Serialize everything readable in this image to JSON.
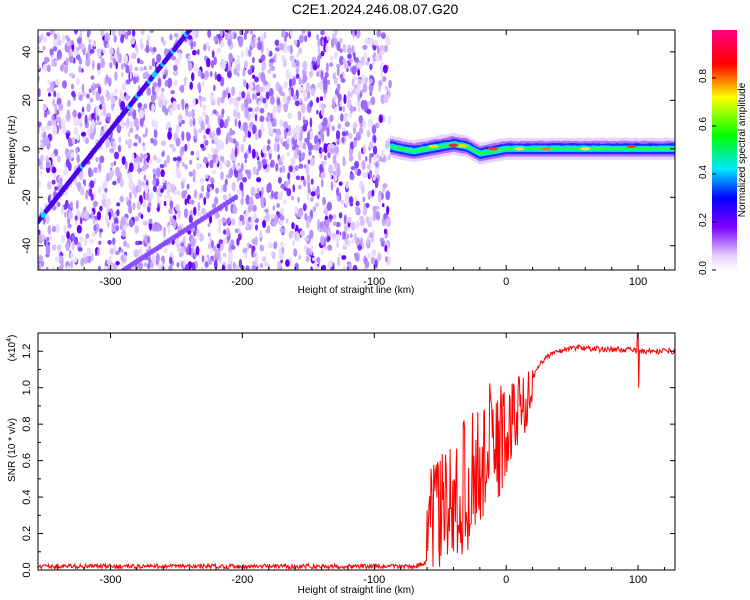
{
  "figure_title": "C2E1.2024.246.08.07.G20",
  "chart_data": [
    {
      "type": "heatmap",
      "title": "C2E1.2024.246.08.07.G20",
      "xlabel": "Height of straight line (km)",
      "ylabel": "Frequency (Hz)",
      "xlim": [
        -355,
        128
      ],
      "ylim": [
        -50,
        49
      ],
      "x_ticks": [
        -300,
        -200,
        -100,
        0,
        100
      ],
      "x_tick_labels": [
        "-300",
        "-200",
        "-100",
        "0",
        "100"
      ],
      "y_ticks": [
        -40,
        -20,
        0,
        20,
        40
      ],
      "y_tick_labels": [
        "-40",
        "-20",
        "0",
        "20",
        "40"
      ],
      "grid": false,
      "colorbar": {
        "label": "Normalized spectral amplitude",
        "range": [
          0,
          1
        ],
        "ticks": [
          0.0,
          0.2,
          0.4,
          0.6,
          0.8
        ],
        "tick_labels": [
          "0.0",
          "0.2",
          "0.4",
          "0.6",
          "0.8"
        ],
        "colormap": [
          "#ffffff",
          "#7b00ff",
          "#0000ff",
          "#00e6ff",
          "#00ff00",
          "#ffff00",
          "#ff0000",
          "#ff0080"
        ]
      },
      "features": {
        "noise_region_x": [
          -355,
          -88
        ],
        "rising_line": {
          "x": [
            -355,
            -240
          ],
          "y": [
            -30,
            49
          ]
        },
        "secondary_line": {
          "x": [
            -290,
            -205
          ],
          "y": [
            -50,
            -20
          ]
        },
        "carrier_track": {
          "x": [
            -88,
            -80,
            -70,
            -60,
            -50,
            -40,
            -30,
            -20,
            -10,
            0,
            20,
            40,
            60,
            80,
            100,
            128
          ],
          "y": [
            1,
            0,
            -1,
            0,
            1,
            2,
            1,
            -2,
            -1,
            0,
            0,
            0,
            0,
            0,
            0,
            0
          ]
        }
      }
    },
    {
      "type": "line",
      "xlabel": "Height of straight line (km)",
      "ylabel": "SNR (10 * v/v)",
      "scale_label": "(x10",
      "scale_exponent": "4",
      "xlim": [
        -355,
        128
      ],
      "ylim": [
        0,
        1.3
      ],
      "x_ticks": [
        -300,
        -200,
        -100,
        0,
        100
      ],
      "x_tick_labels": [
        "-300",
        "-200",
        "-100",
        "0",
        "100"
      ],
      "y_ticks": [
        0.0,
        0.2,
        0.4,
        0.6,
        0.8,
        1.0,
        1.2
      ],
      "y_tick_labels": [
        "0.0",
        "0.2",
        "0.4",
        "0.6",
        "0.8",
        "1.0",
        "1.2"
      ],
      "grid": false,
      "series": [
        {
          "color": "#ff0000",
          "x": [
            -355,
            -300,
            -200,
            -100,
            -70,
            -60,
            -55,
            -50,
            -45,
            -40,
            -35,
            -30,
            -25,
            -20,
            -15,
            -10,
            -5,
            0,
            5,
            10,
            15,
            20,
            25,
            30,
            40,
            50,
            60,
            70,
            80,
            90,
            100,
            110,
            120,
            128
          ],
          "y": [
            0.02,
            0.02,
            0.02,
            0.02,
            0.02,
            0.04,
            0.2,
            0.25,
            0.2,
            0.22,
            0.3,
            0.38,
            0.42,
            0.45,
            0.5,
            0.55,
            0.6,
            0.68,
            0.78,
            0.88,
            0.98,
            1.05,
            1.12,
            1.17,
            1.2,
            1.22,
            1.22,
            1.21,
            1.21,
            1.21,
            1.2,
            1.2,
            1.2,
            1.2
          ],
          "noise_envelope": {
            "x": [
              -60,
              -50,
              -40,
              -30,
              -20,
              -10,
              0,
              10,
              20
            ],
            "y_low": [
              0.0,
              0.0,
              0.02,
              0.1,
              0.2,
              0.3,
              0.45,
              0.65,
              0.9
            ],
            "y_high": [
              0.55,
              0.65,
              0.7,
              0.85,
              0.95,
              1.05,
              1.05,
              1.1,
              1.1
            ]
          }
        }
      ]
    }
  ]
}
